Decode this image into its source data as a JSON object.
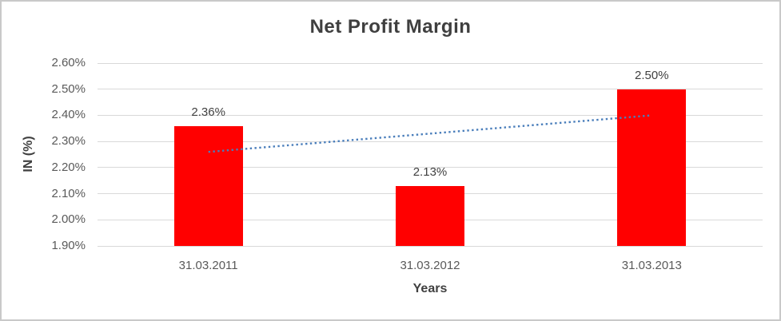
{
  "chart_data": {
    "type": "bar",
    "title": "Net Profit Margin",
    "xlabel": "Years",
    "ylabel": "IN (%)",
    "categories": [
      "31.03.2011",
      "31.03.2012",
      "31.03.2013"
    ],
    "values": [
      2.36,
      2.13,
      2.5
    ],
    "data_labels": [
      "2.36%",
      "2.13%",
      "2.50%"
    ],
    "ylim": [
      1.9,
      2.6
    ],
    "ytick_step": 0.1,
    "ytick_labels": [
      "1.90%",
      "2.00%",
      "2.10%",
      "2.20%",
      "2.30%",
      "2.40%",
      "2.50%",
      "2.60%"
    ],
    "grid": true,
    "legend": "none",
    "bar_color": "#ff0000",
    "trendline": {
      "type": "linear",
      "style": "dotted",
      "color": "#4a7ebb",
      "start": {
        "category_index": 0,
        "value": 2.26
      },
      "end": {
        "category_index": 2,
        "value": 2.4
      }
    }
  },
  "colors": {
    "background": "#ffffff",
    "border": "#c9c9c9",
    "gridline": "#d9d9d9",
    "title_text": "#3f3f3f",
    "axis_text": "#595959",
    "label_text": "#404040",
    "bar": "#ff0000",
    "trendline": "#4a7ebb"
  }
}
